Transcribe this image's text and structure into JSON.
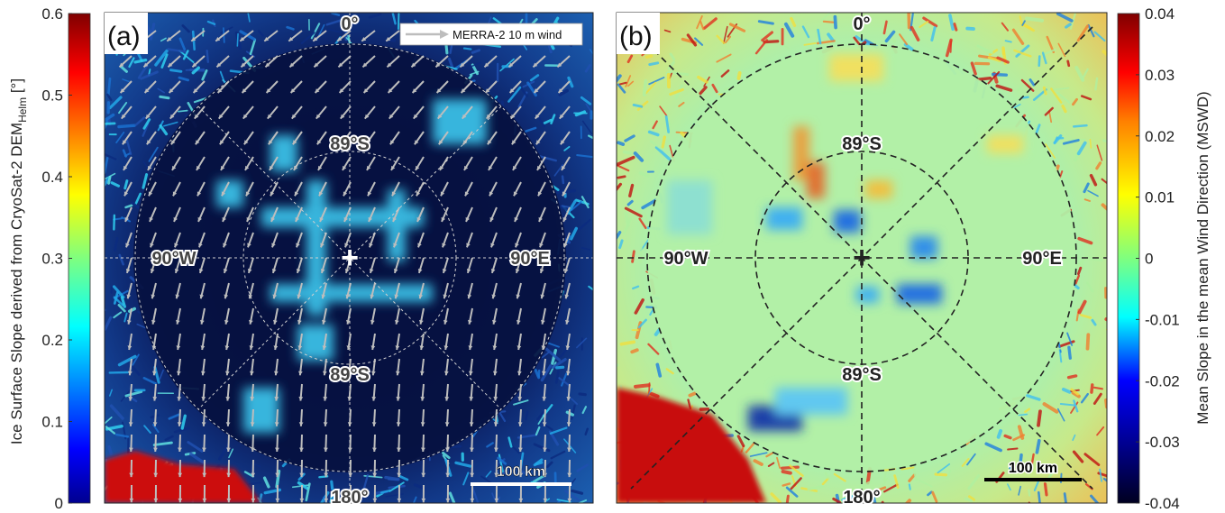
{
  "panel_a": {
    "label": "(a)",
    "graticule_labels": {
      "top": "0°",
      "left": "90°W",
      "right": "90°E",
      "bottom": "180°",
      "inner_upper": "89°S",
      "inner_lower": "89°S"
    },
    "legend": {
      "label": "MERRA-2 10 m wind",
      "arrow_color": "#bdbdbd"
    },
    "scalebar": {
      "label": "100 km",
      "color": "#ffffff"
    },
    "pole_marker": "+",
    "colorbar": {
      "label": "Ice Surface Slope derived from CryoSat-2 DEM",
      "label_sub": "Helm",
      "label_unit": " [°]",
      "colormap": "jet",
      "ticks": [
        "0.6",
        "0.5",
        "0.4",
        "0.3",
        "0.2",
        "0.1",
        "0"
      ],
      "range": [
        0,
        0.6
      ]
    }
  },
  "panel_b": {
    "label": "(b)",
    "graticule_labels": {
      "top": "0°",
      "left": "90°W",
      "right": "90°E",
      "bottom": "180°",
      "inner_upper": "89°S",
      "inner_lower": "89°S"
    },
    "scalebar": {
      "label": "100 km",
      "color": "#000000"
    },
    "pole_marker": "+",
    "colorbar": {
      "label": "Mean Slope in the mean Wind Direction (MSWD)",
      "colormap": "jet",
      "ticks": [
        "0.04",
        "0.03",
        "0.02",
        "0.01",
        "0",
        "-0.01",
        "-0.02",
        "-0.03",
        "-0.04"
      ],
      "range": [
        -0.04,
        0.04
      ]
    }
  },
  "colors": {
    "jet_low": "#00008f",
    "jet_mid": "#7fff7f",
    "jet_high": "#800000",
    "wind_arrows": "#bdbdbd"
  }
}
